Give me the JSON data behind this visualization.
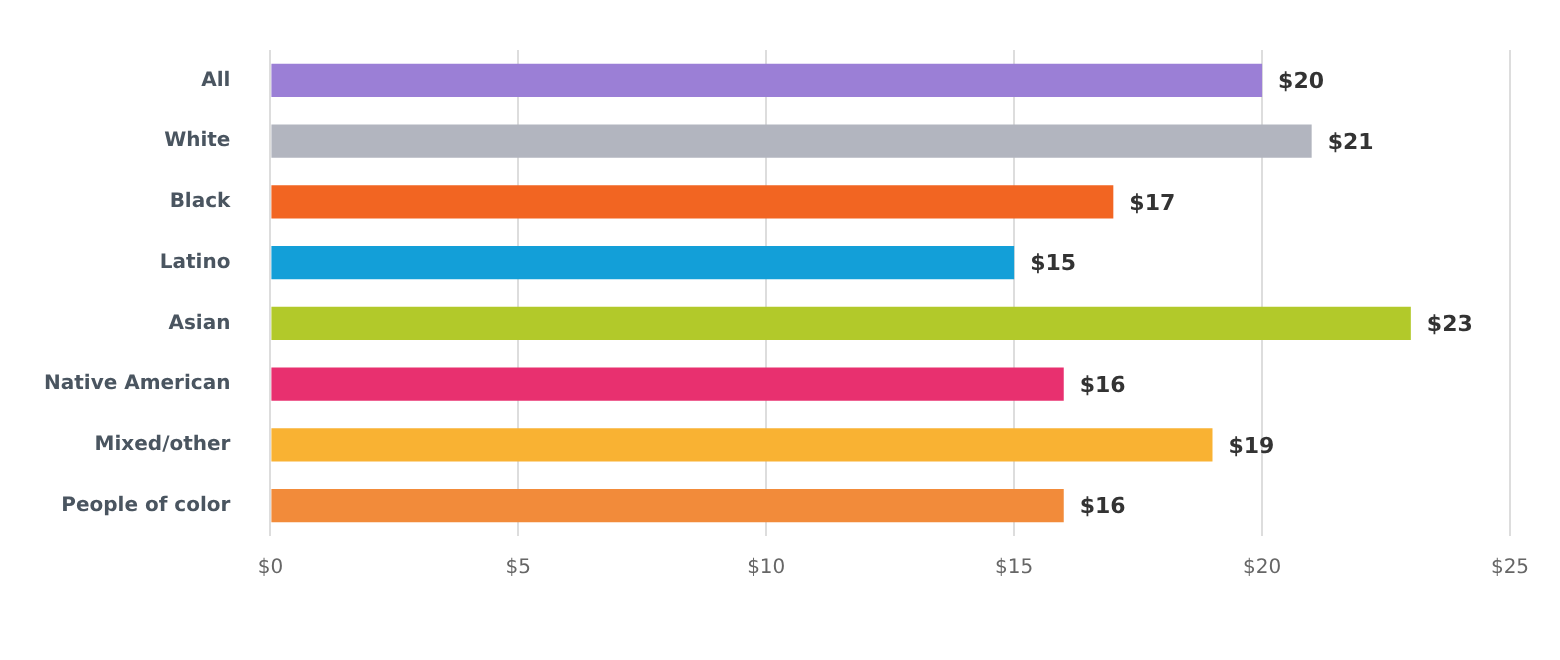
{
  "chart_data": {
    "type": "bar",
    "orientation": "horizontal",
    "categories": [
      "All",
      "White",
      "Black",
      "Latino",
      "Asian",
      "Native American",
      "Mixed/other",
      "People of color"
    ],
    "values": [
      20,
      21,
      17,
      15,
      23,
      16,
      19,
      16
    ],
    "colors": [
      "#9b7fd6",
      "#b2b5bf",
      "#f26522",
      "#139fd8",
      "#b2c92a",
      "#e8306f",
      "#f9b233",
      "#f28b3a"
    ],
    "value_labels": [
      "$20",
      "$21",
      "$17",
      "$15",
      "$23",
      "$16",
      "$19",
      "$16"
    ],
    "xlim": [
      0,
      25
    ],
    "xticks": [
      {
        "value": 0,
        "label": "$0"
      },
      {
        "value": 5,
        "label": "$5"
      },
      {
        "value": 10,
        "label": "$10"
      },
      {
        "value": 15,
        "label": "$15"
      },
      {
        "value": 20,
        "label": "$20"
      },
      {
        "value": 25,
        "label": "$25"
      }
    ],
    "grid": "x",
    "legend": false
  }
}
